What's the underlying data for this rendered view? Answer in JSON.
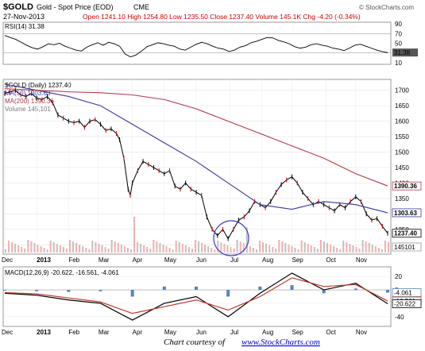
{
  "header": {
    "symbol": "$GOLD",
    "name": "Gold - Spot Price (EOD)",
    "exchange": "CME",
    "date": "27-Nov-2013",
    "stats_line": "Open 1241.10  High 1254.80  Low 1235.50  Close 1237.40  Volume 145.1K  Chg -4.20 (-0.34%)",
    "stats_color": "#cc0000",
    "brand": "© StockCharts.com"
  },
  "footer": {
    "prefix": "Chart courtesy of ",
    "link": "www.StockCharts.com",
    "link_color": "#0000cc"
  },
  "chart_data": [
    {
      "type": "line",
      "panel": "rsi",
      "legend": "RSI(14) 31.38",
      "y_ticks": [
        10,
        30,
        50,
        70,
        90
      ],
      "ylim": [
        10,
        90
      ],
      "reference_lines": [
        30,
        70
      ],
      "last_value_label": "31.38",
      "series": [
        {
          "name": "RSI(14)",
          "values": [
            66,
            62,
            58,
            52,
            46,
            41,
            38,
            43,
            49,
            47,
            50,
            44,
            40,
            36,
            34,
            42,
            47,
            51,
            46,
            52,
            49,
            44,
            28,
            22,
            26,
            34,
            43,
            47,
            51,
            49,
            46,
            44,
            38,
            36,
            42,
            48,
            52,
            49,
            44,
            40,
            38,
            33,
            36,
            42,
            45,
            51,
            54,
            58,
            62,
            61,
            56,
            53,
            49,
            43,
            40,
            42,
            47,
            49,
            46,
            44,
            40,
            38,
            35,
            40,
            46,
            48,
            44,
            40,
            36,
            33,
            31
          ]
        }
      ]
    },
    {
      "type": "line",
      "panel": "price",
      "legend": [
        "$GOLD (Daily) 1237.40",
        "MA(50) 1303.63",
        "MA(200) 1390.36",
        "Volume 145,101"
      ],
      "legend_colors": [
        "#000000",
        "#3a3aa0",
        "#b03a4a",
        "#7a7a7a"
      ],
      "x_ticks": [
        "Dec",
        "2013",
        "Feb",
        "Mar",
        "Apr",
        "May",
        "Jun",
        "Jul",
        "Aug",
        "Sep",
        "Oct",
        "Nov"
      ],
      "x_tick_positions_days": [
        -2,
        30,
        60,
        88,
        120,
        150,
        180,
        212,
        242,
        270,
        302,
        330
      ],
      "y_ticks": [
        1200,
        1250,
        1300,
        1350,
        1400,
        1450,
        1500,
        1550,
        1600,
        1650,
        1700
      ],
      "ylim": [
        1175,
        1730
      ],
      "grid": true,
      "series": [
        {
          "name": "$GOLD (Daily)",
          "x_days": [
            0,
            5,
            10,
            15,
            20,
            25,
            30,
            35,
            40,
            45,
            50,
            55,
            60,
            65,
            70,
            75,
            80,
            85,
            90,
            95,
            100,
            105,
            108,
            112,
            116,
            118,
            120,
            125,
            130,
            135,
            140,
            145,
            150,
            155,
            160,
            165,
            170,
            175,
            180,
            185,
            190,
            195,
            200,
            205,
            210,
            215,
            220,
            225,
            230,
            235,
            240,
            245,
            250,
            255,
            260,
            265,
            270,
            275,
            280,
            285,
            290,
            295,
            300,
            305,
            310,
            315,
            320,
            325,
            330,
            335,
            340,
            345,
            350,
            355,
            360
          ],
          "values": [
            1690,
            1695,
            1700,
            1685,
            1680,
            1690,
            1675,
            1670,
            1680,
            1660,
            1620,
            1610,
            1600,
            1595,
            1600,
            1580,
            1600,
            1605,
            1590,
            1570,
            1575,
            1560,
            1540,
            1480,
            1380,
            1360,
            1400,
            1440,
            1470,
            1460,
            1450,
            1440,
            1430,
            1440,
            1390,
            1380,
            1400,
            1380,
            1370,
            1360,
            1290,
            1250,
            1230,
            1250,
            1220,
            1250,
            1280,
            1290,
            1310,
            1340,
            1330,
            1320,
            1340,
            1370,
            1395,
            1410,
            1420,
            1400,
            1370,
            1350,
            1330,
            1340,
            1330,
            1320,
            1310,
            1330,
            1320,
            1340,
            1355,
            1340,
            1300,
            1280,
            1285,
            1260,
            1237.4
          ]
        },
        {
          "name": "MA(50)",
          "x_days": [
            0,
            30,
            60,
            90,
            120,
            150,
            180,
            210,
            240,
            270,
            300,
            330,
            360
          ],
          "values": [
            1720,
            1700,
            1680,
            1650,
            1590,
            1530,
            1470,
            1400,
            1330,
            1315,
            1340,
            1330,
            1303.63
          ]
        },
        {
          "name": "MA(200)",
          "x_days": [
            0,
            30,
            60,
            90,
            120,
            150,
            180,
            210,
            240,
            270,
            300,
            330,
            360
          ],
          "values": [
            1705,
            1700,
            1695,
            1692,
            1685,
            1670,
            1640,
            1600,
            1560,
            1520,
            1480,
            1430,
            1390.36
          ]
        }
      ],
      "last_value_labels": [
        "1390.36",
        "1303.63",
        "1237.40",
        "145101"
      ],
      "annotation": "circle around July low"
    },
    {
      "type": "line",
      "panel": "macd",
      "legend": "MACD(12,26,9) -20.622, -16.561, -4.061",
      "y_ticks": [
        20,
        0,
        -20,
        -40
      ],
      "ylim": [
        -52,
        32
      ],
      "x_ticks": [
        "Dec",
        "2013",
        "Feb",
        "Mar",
        "Apr",
        "May",
        "Jun",
        "Jul",
        "Aug",
        "Sep",
        "Oct",
        "Nov"
      ],
      "last_value_labels": [
        "-4.061",
        "-16.561",
        "-20.622"
      ],
      "series": [
        {
          "name": "MACD",
          "x_days": [
            0,
            30,
            60,
            90,
            120,
            150,
            180,
            210,
            240,
            270,
            300,
            330,
            360
          ],
          "values": [
            -5,
            -8,
            -15,
            -20,
            -45,
            -20,
            -10,
            -40,
            -5,
            25,
            0,
            10,
            -20.622
          ]
        },
        {
          "name": "Signal",
          "x_days": [
            0,
            30,
            60,
            90,
            120,
            150,
            180,
            210,
            240,
            270,
            300,
            330,
            360
          ],
          "values": [
            -4,
            -6,
            -12,
            -18,
            -35,
            -25,
            -15,
            -30,
            -10,
            18,
            5,
            8,
            -16.561
          ]
        }
      ]
    }
  ]
}
